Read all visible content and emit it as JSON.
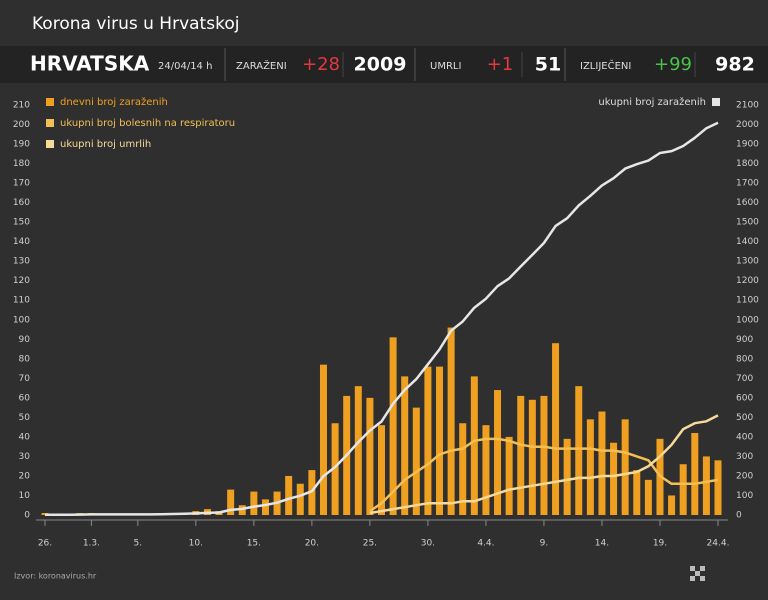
{
  "header": {
    "title": "Korona virus u Hrvatskoj",
    "country": "HRVATSKA",
    "date": "24/04/14 h",
    "stats": [
      {
        "label": "ZARAŽENI",
        "change": "+28",
        "total": "2009",
        "color": "#e0393e"
      },
      {
        "label": "UMRLI",
        "change": "+1",
        "total": "51",
        "color": "#e0393e"
      },
      {
        "label": "IZLIJEČENI",
        "change": "+99",
        "total": "982",
        "color": "#4cc04c"
      }
    ]
  },
  "source": "Izvor: koronavirus.hr",
  "chart_data": {
    "type": "bar_line",
    "categories": [
      "26.",
      null,
      null,
      null,
      "1.3.",
      null,
      null,
      null,
      "5.",
      null,
      null,
      null,
      null,
      "10.",
      null,
      null,
      null,
      null,
      "15.",
      null,
      null,
      null,
      null,
      "20.",
      null,
      null,
      null,
      null,
      "25.",
      null,
      null,
      null,
      null,
      "30.",
      null,
      null,
      null,
      null,
      "4.4.",
      null,
      null,
      null,
      null,
      "9.",
      null,
      null,
      null,
      null,
      "14.",
      null,
      null,
      null,
      null,
      "19.",
      null,
      null,
      null,
      null,
      "24.4."
    ],
    "ylim": [
      0,
      210
    ],
    "yticks": [
      0,
      10,
      20,
      30,
      40,
      50,
      60,
      70,
      80,
      90,
      100,
      110,
      120,
      130,
      140,
      150,
      160,
      170,
      180,
      190,
      200,
      210
    ],
    "y2lim": [
      0,
      2100
    ],
    "y2ticks": [
      0,
      100,
      200,
      300,
      400,
      500,
      600,
      700,
      800,
      900,
      1000,
      1100,
      1200,
      1300,
      1400,
      1500,
      1600,
      1700,
      1800,
      1900,
      2000,
      2100
    ],
    "grid": false,
    "series": [
      {
        "name": "dnevni broj zaraženih",
        "kind": "bar",
        "color": "#f0a020",
        "values": [
          1,
          0,
          0,
          1,
          1,
          0,
          0,
          0,
          0,
          0,
          1,
          1,
          1,
          2,
          3,
          2,
          13,
          5,
          12,
          8,
          12,
          20,
          16,
          23,
          77,
          47,
          61,
          66,
          60,
          46,
          91,
          71,
          55,
          76,
          76,
          96,
          47,
          71,
          46,
          64,
          40,
          61,
          59,
          61,
          88,
          39,
          66,
          49,
          53,
          37,
          49,
          23,
          18,
          39,
          10,
          26,
          42,
          30,
          28
        ]
      },
      {
        "name": "ukupni broj bolesnih na respiratoru",
        "kind": "line",
        "color": "#f3bf55",
        "values": [
          null,
          null,
          null,
          null,
          null,
          null,
          null,
          null,
          null,
          null,
          null,
          null,
          null,
          null,
          null,
          null,
          null,
          null,
          null,
          null,
          null,
          null,
          null,
          null,
          null,
          null,
          null,
          null,
          2,
          6,
          12,
          18,
          22,
          26,
          31,
          33,
          34,
          38,
          39,
          39,
          38,
          36,
          35,
          35,
          34,
          34,
          34,
          34,
          33,
          33,
          32,
          30,
          28,
          20,
          16,
          16,
          16,
          17,
          18
        ]
      },
      {
        "name": "ukupni broj umrlih",
        "kind": "line",
        "color": "#f7d99a",
        "values": [
          null,
          null,
          null,
          null,
          null,
          null,
          null,
          null,
          null,
          null,
          null,
          null,
          null,
          null,
          null,
          null,
          null,
          null,
          null,
          null,
          null,
          null,
          null,
          null,
          null,
          null,
          null,
          null,
          1,
          2,
          3,
          4,
          5,
          6,
          6,
          6,
          7,
          7,
          9,
          11,
          13,
          14,
          15,
          16,
          17,
          18,
          19,
          19,
          20,
          20,
          21,
          22,
          25,
          30,
          36,
          44,
          47,
          48,
          51
        ]
      },
      {
        "name": "ukupni broj zaraženih",
        "kind": "line",
        "axis": "y2",
        "color": "#e6e6e6",
        "values": [
          1,
          1,
          1,
          2,
          3,
          3,
          3,
          3,
          3,
          3,
          4,
          5,
          6,
          8,
          11,
          13,
          26,
          31,
          43,
          51,
          63,
          83,
          99,
          122,
          199,
          246,
          307,
          373,
          433,
          479,
          570,
          641,
          696,
          772,
          848,
          944,
          991,
          1062,
          1108,
          1172,
          1212,
          1273,
          1332,
          1393,
          1481,
          1520,
          1586,
          1635,
          1688,
          1725,
          1774,
          1797,
          1815,
          1854,
          1864,
          1890,
          1932,
          1981,
          2009
        ]
      }
    ]
  }
}
